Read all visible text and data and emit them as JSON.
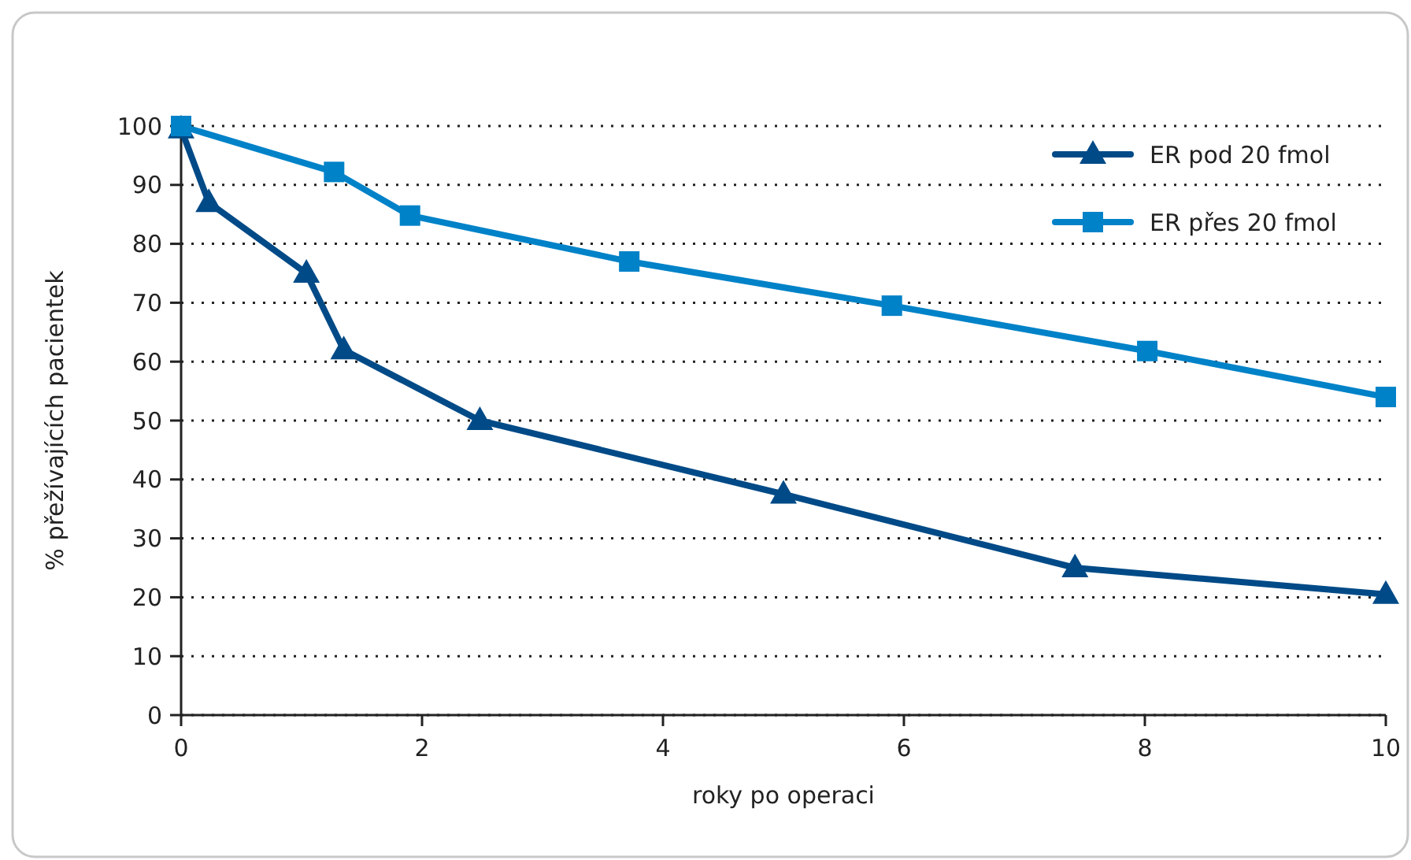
{
  "chart_data": {
    "type": "line",
    "xlabel": "roky po operaci",
    "ylabel": "% přežívajících pacientek",
    "xlim": [
      0,
      10
    ],
    "xticks": [
      0,
      2,
      4,
      6,
      8,
      10
    ],
    "ylim": [
      0,
      100
    ],
    "yticks": [
      0,
      10,
      20,
      30,
      40,
      50,
      60,
      70,
      80,
      90,
      100
    ],
    "grid": "y",
    "legend": "top right",
    "series": [
      {
        "name": "ER pod 20 fmol",
        "color": "#004a87",
        "marker": "triangle",
        "x": [
          0,
          0.23,
          1.04,
          1.35,
          2.48,
          5.0,
          7.42,
          10
        ],
        "values": [
          99.5,
          87,
          75,
          62,
          50,
          37.5,
          25,
          20.5
        ]
      },
      {
        "name": "ER přes 20 fmol",
        "color": "#0082c8",
        "marker": "square",
        "x": [
          0,
          1.27,
          1.9,
          3.72,
          5.9,
          8.02,
          10
        ],
        "values": [
          100,
          92.2,
          84.8,
          77,
          69.5,
          61.8,
          54
        ]
      }
    ]
  }
}
